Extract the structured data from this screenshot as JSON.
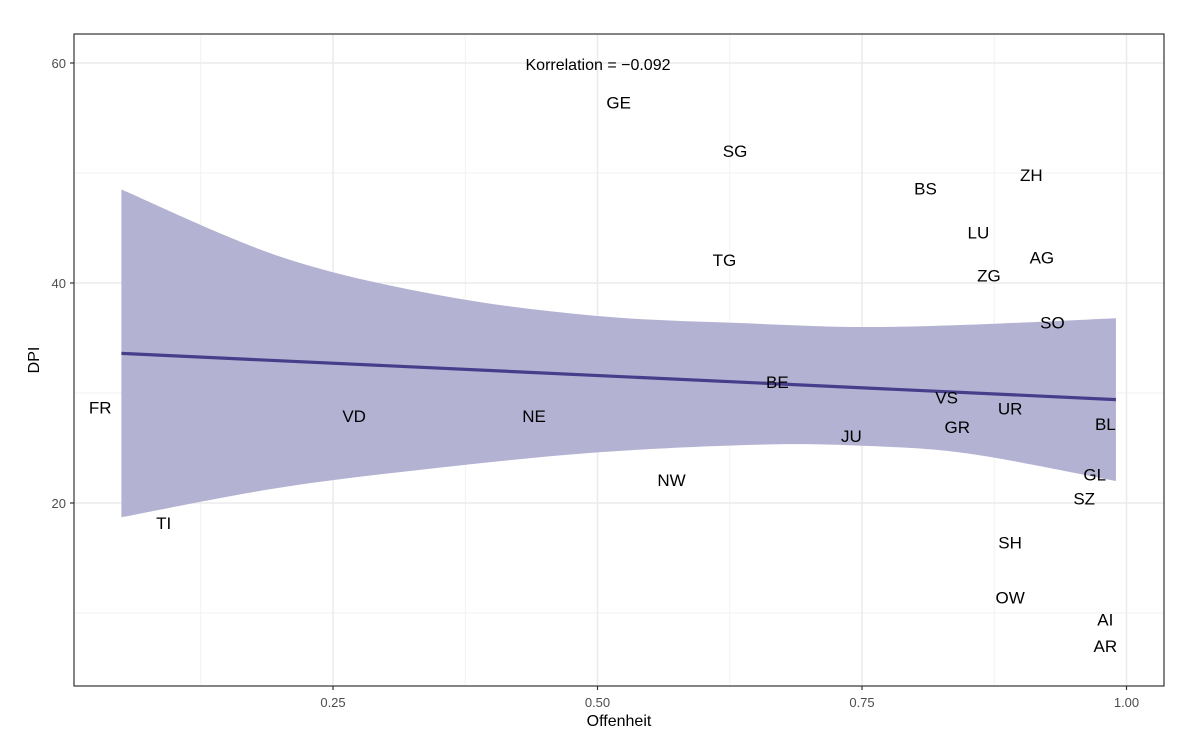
{
  "chart_data": {
    "type": "scatter",
    "title": "",
    "annotation": "Korrelation = −0.092",
    "xlabel": "Offenheit",
    "ylabel": "DPI",
    "xlim": [
      0.0,
      1.02
    ],
    "ylim": [
      6,
      62.5
    ],
    "x_ticks": [
      0.25,
      0.5,
      0.75,
      1.0
    ],
    "x_tick_labels": [
      "0.25",
      "0.50",
      "0.75",
      "1.00"
    ],
    "y_ticks": [
      20,
      40,
      60
    ],
    "y_tick_labels": [
      "20",
      "40",
      "60"
    ],
    "grid": true,
    "legend": "none",
    "colors": {
      "fit_line": "#483d8b",
      "ci_band": "#b3b0d1",
      "grid": "#ebebeb",
      "panel_border": "#333333"
    },
    "points": [
      {
        "label": "GE",
        "x": 0.52,
        "y": 56.4
      },
      {
        "label": "SG",
        "x": 0.63,
        "y": 52.0
      },
      {
        "label": "ZH",
        "x": 0.91,
        "y": 49.8
      },
      {
        "label": "BS",
        "x": 0.81,
        "y": 48.6
      },
      {
        "label": "LU",
        "x": 0.86,
        "y": 44.6
      },
      {
        "label": "AG",
        "x": 0.92,
        "y": 42.3
      },
      {
        "label": "TG",
        "x": 0.62,
        "y": 42.1
      },
      {
        "label": "ZG",
        "x": 0.87,
        "y": 40.7
      },
      {
        "label": "SO",
        "x": 0.93,
        "y": 36.4
      },
      {
        "label": "BE",
        "x": 0.67,
        "y": 31.0
      },
      {
        "label": "VS",
        "x": 0.83,
        "y": 29.6
      },
      {
        "label": "FR",
        "x": 0.03,
        "y": 28.7
      },
      {
        "label": "UR",
        "x": 0.89,
        "y": 28.6
      },
      {
        "label": "VD",
        "x": 0.27,
        "y": 27.9
      },
      {
        "label": "NE",
        "x": 0.44,
        "y": 27.9
      },
      {
        "label": "BL",
        "x": 0.98,
        "y": 27.2
      },
      {
        "label": "GR",
        "x": 0.84,
        "y": 26.9
      },
      {
        "label": "JU",
        "x": 0.74,
        "y": 26.1
      },
      {
        "label": "GL",
        "x": 0.97,
        "y": 22.6
      },
      {
        "label": "NW",
        "x": 0.57,
        "y": 22.1
      },
      {
        "label": "SZ",
        "x": 0.96,
        "y": 20.4
      },
      {
        "label": "TI",
        "x": 0.09,
        "y": 18.2
      },
      {
        "label": "SH",
        "x": 0.89,
        "y": 16.4
      },
      {
        "label": "OW",
        "x": 0.89,
        "y": 11.4
      },
      {
        "label": "AI",
        "x": 0.98,
        "y": 9.4
      },
      {
        "label": "AR",
        "x": 0.98,
        "y": 7.0
      }
    ],
    "fit": {
      "method": "linear",
      "x": [
        0.05,
        0.99
      ],
      "y": [
        33.6,
        29.4
      ]
    },
    "ci_band": {
      "x": [
        0.05,
        0.2,
        0.35,
        0.5,
        0.65,
        0.75,
        0.85,
        0.99
      ],
      "upper": [
        48.5,
        42.4,
        38.9,
        37.0,
        36.3,
        36.0,
        36.2,
        36.8
      ],
      "lower": [
        18.7,
        21.4,
        23.2,
        24.6,
        25.3,
        25.2,
        24.5,
        22.0
      ]
    }
  }
}
